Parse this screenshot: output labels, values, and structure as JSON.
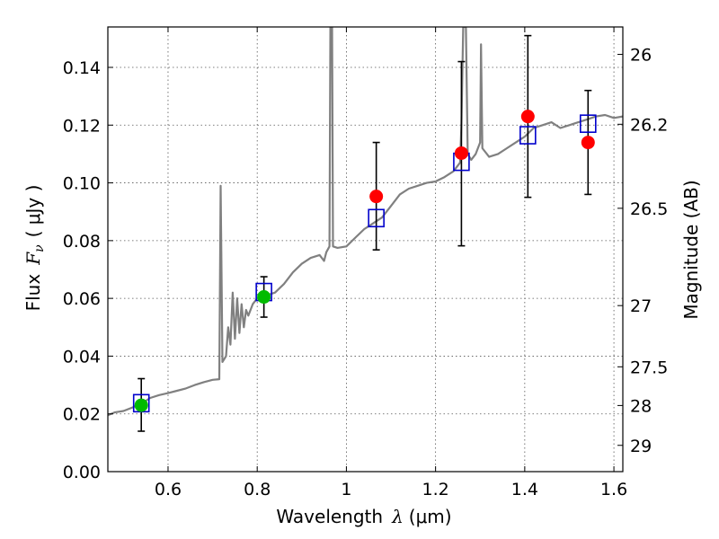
{
  "chart_data": {
    "type": "scatter",
    "xlabel": "Wavelength",
    "xlabel_symbol": "λ",
    "xlabel_unit": "(μm)",
    "ylabel_prefix": "Flux",
    "ylabel_symbol": "F",
    "ylabel_subscript": "ν",
    "ylabel_unit": "( μJy )",
    "y2label": "Magnitude (AB)",
    "xlim": [
      0.465,
      1.62
    ],
    "ylim": [
      0.0,
      0.154
    ],
    "grid": true,
    "x_ticks": [
      {
        "value": 0.6,
        "label": "0.6"
      },
      {
        "value": 0.8,
        "label": "0.8"
      },
      {
        "value": 1.0,
        "label": "1"
      },
      {
        "value": 1.2,
        "label": "1.2"
      },
      {
        "value": 1.4,
        "label": "1.4"
      },
      {
        "value": 1.6,
        "label": "1.6"
      }
    ],
    "y_ticks": [
      {
        "value": 0.0,
        "label": "0.00"
      },
      {
        "value": 0.02,
        "label": "0.02"
      },
      {
        "value": 0.04,
        "label": "0.04"
      },
      {
        "value": 0.06,
        "label": "0.06"
      },
      {
        "value": 0.08,
        "label": "0.08"
      },
      {
        "value": 0.1,
        "label": "0.10"
      },
      {
        "value": 0.12,
        "label": "0.12"
      },
      {
        "value": 0.14,
        "label": "0.14"
      }
    ],
    "y2_ticks": [
      {
        "flux": 0.1445,
        "label": "26"
      },
      {
        "flux": 0.1203,
        "label": "26.2"
      },
      {
        "flux": 0.0912,
        "label": "26.5"
      },
      {
        "flux": 0.0575,
        "label": "27"
      },
      {
        "flux": 0.0363,
        "label": "27.5"
      },
      {
        "flux": 0.0229,
        "label": "28"
      },
      {
        "flux": 0.0091,
        "label": "29"
      }
    ],
    "colors": {
      "spectrum": "#808080",
      "observed_red": "#ff0000",
      "observed_green": "#00bb00",
      "model": "#0000cc",
      "errorbar": "#000000",
      "grid": "#555555"
    },
    "spectrum": [
      [
        0.465,
        0.0195
      ],
      [
        0.48,
        0.0205
      ],
      [
        0.5,
        0.021
      ],
      [
        0.52,
        0.0222
      ],
      [
        0.54,
        0.0235
      ],
      [
        0.56,
        0.0255
      ],
      [
        0.58,
        0.0265
      ],
      [
        0.6,
        0.0272
      ],
      [
        0.62,
        0.028
      ],
      [
        0.64,
        0.0288
      ],
      [
        0.66,
        0.03
      ],
      [
        0.68,
        0.031
      ],
      [
        0.7,
        0.0318
      ],
      [
        0.715,
        0.032
      ],
      [
        0.718,
        0.099
      ],
      [
        0.722,
        0.038
      ],
      [
        0.73,
        0.04
      ],
      [
        0.735,
        0.05
      ],
      [
        0.74,
        0.044
      ],
      [
        0.745,
        0.062
      ],
      [
        0.75,
        0.046
      ],
      [
        0.755,
        0.06
      ],
      [
        0.76,
        0.048
      ],
      [
        0.765,
        0.058
      ],
      [
        0.77,
        0.05
      ],
      [
        0.775,
        0.056
      ],
      [
        0.78,
        0.054
      ],
      [
        0.79,
        0.058
      ],
      [
        0.8,
        0.06
      ],
      [
        0.82,
        0.061
      ],
      [
        0.84,
        0.062
      ],
      [
        0.86,
        0.065
      ],
      [
        0.88,
        0.069
      ],
      [
        0.9,
        0.072
      ],
      [
        0.92,
        0.074
      ],
      [
        0.94,
        0.075
      ],
      [
        0.95,
        0.073
      ],
      [
        0.955,
        0.076
      ],
      [
        0.962,
        0.078
      ],
      [
        0.964,
        0.154
      ],
      [
        0.968,
        0.154
      ],
      [
        0.97,
        0.078
      ],
      [
        0.98,
        0.0775
      ],
      [
        1.0,
        0.078
      ],
      [
        1.02,
        0.081
      ],
      [
        1.04,
        0.084
      ],
      [
        1.06,
        0.086
      ],
      [
        1.08,
        0.088
      ],
      [
        1.1,
        0.092
      ],
      [
        1.12,
        0.096
      ],
      [
        1.14,
        0.098
      ],
      [
        1.16,
        0.099
      ],
      [
        1.18,
        0.1
      ],
      [
        1.2,
        0.1005
      ],
      [
        1.22,
        0.102
      ],
      [
        1.24,
        0.104
      ],
      [
        1.25,
        0.106
      ],
      [
        1.255,
        0.107
      ],
      [
        1.258,
        0.12
      ],
      [
        1.262,
        0.154
      ],
      [
        1.268,
        0.154
      ],
      [
        1.272,
        0.11
      ],
      [
        1.28,
        0.108
      ],
      [
        1.29,
        0.11
      ],
      [
        1.3,
        0.114
      ],
      [
        1.302,
        0.148
      ],
      [
        1.305,
        0.112
      ],
      [
        1.32,
        0.109
      ],
      [
        1.34,
        0.11
      ],
      [
        1.36,
        0.112
      ],
      [
        1.38,
        0.114
      ],
      [
        1.4,
        0.116
      ],
      [
        1.42,
        0.119
      ],
      [
        1.44,
        0.12
      ],
      [
        1.46,
        0.121
      ],
      [
        1.48,
        0.119
      ],
      [
        1.5,
        0.12
      ],
      [
        1.52,
        0.121
      ],
      [
        1.54,
        0.122
      ],
      [
        1.56,
        0.123
      ],
      [
        1.58,
        0.1235
      ],
      [
        1.6,
        0.1225
      ],
      [
        1.62,
        0.123
      ]
    ],
    "observed": [
      {
        "x": 0.54,
        "y": 0.023,
        "err_low": 0.014,
        "err_high": 0.0322,
        "color": "green"
      },
      {
        "x": 0.815,
        "y": 0.0605,
        "err_low": 0.0535,
        "err_high": 0.0675,
        "color": "green"
      },
      {
        "x": 1.067,
        "y": 0.0953,
        "err_low": 0.0768,
        "err_high": 0.114,
        "color": "red"
      },
      {
        "x": 1.258,
        "y": 0.1103,
        "err_low": 0.0782,
        "err_high": 0.142,
        "color": "red"
      },
      {
        "x": 1.407,
        "y": 0.123,
        "err_low": 0.095,
        "err_high": 0.151,
        "color": "red"
      },
      {
        "x": 1.542,
        "y": 0.114,
        "err_low": 0.096,
        "err_high": 0.132,
        "color": "red"
      }
    ],
    "model": [
      {
        "x": 0.54,
        "y": 0.0237
      },
      {
        "x": 0.815,
        "y": 0.0622
      },
      {
        "x": 1.067,
        "y": 0.0878
      },
      {
        "x": 1.258,
        "y": 0.1073
      },
      {
        "x": 1.407,
        "y": 0.1165
      },
      {
        "x": 1.542,
        "y": 0.1205
      }
    ]
  }
}
